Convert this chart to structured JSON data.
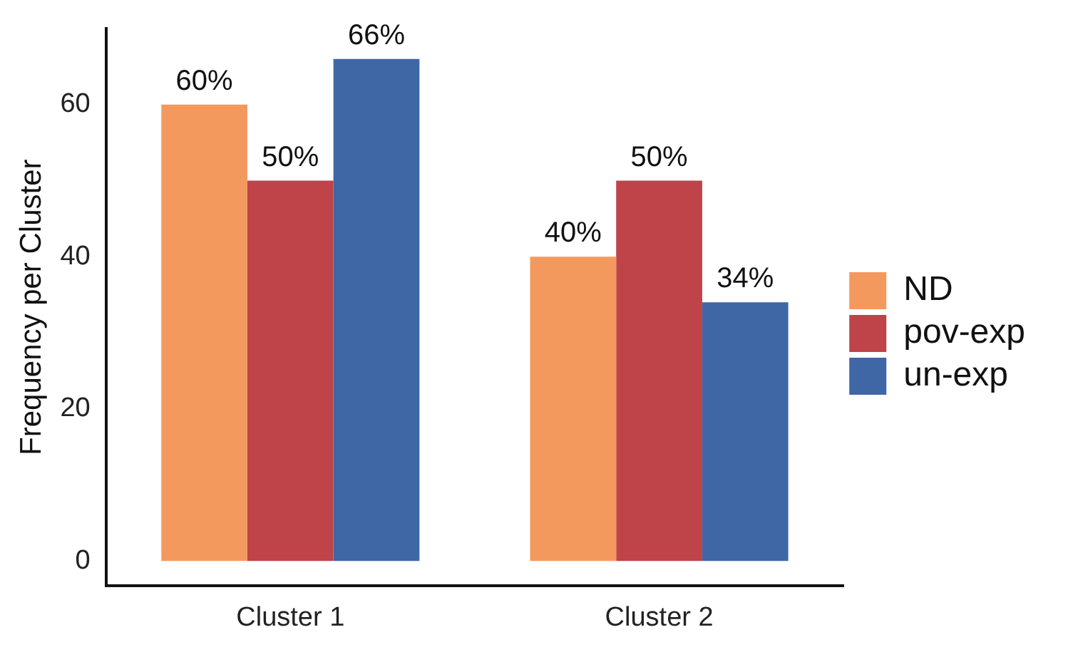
{
  "chart_data": {
    "type": "bar",
    "ylabel": "Frequency per Cluster",
    "categories": [
      "Cluster 1",
      "Cluster 2"
    ],
    "series": [
      {
        "name": "ND",
        "color": "#f4995e",
        "values": [
          60,
          40
        ],
        "value_labels": [
          "60%",
          "40%"
        ]
      },
      {
        "name": "pov-exp",
        "color": "#be4449",
        "values": [
          50,
          50
        ],
        "value_labels": [
          "50%",
          "50%"
        ]
      },
      {
        "name": "un-exp",
        "color": "#3f67a6",
        "values": [
          66,
          34
        ],
        "value_labels": [
          "66%",
          "34%"
        ]
      }
    ],
    "ylim": [
      -3.3,
      70
    ],
    "yticks": [
      0,
      20,
      40,
      60
    ],
    "grid": false,
    "legend": "right"
  }
}
